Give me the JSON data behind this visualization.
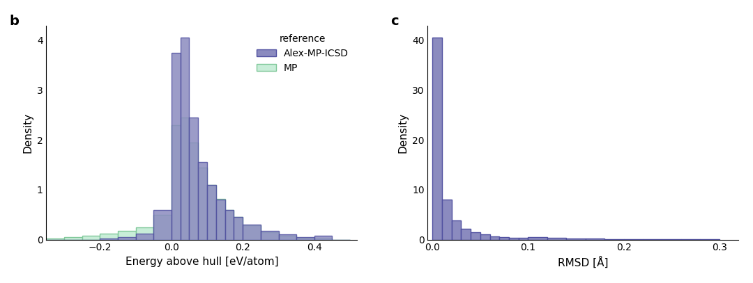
{
  "fig_width": 10.8,
  "fig_height": 4.07,
  "bg_color": "#ffffff",
  "panel_b": {
    "label": "b",
    "xlabel": "Energy above hull [eV/atom]",
    "ylabel": "Density",
    "xlim": [
      -0.35,
      0.52
    ],
    "ylim": [
      0,
      4.3
    ],
    "yticks": [
      0,
      1,
      2,
      3,
      4
    ],
    "xticks": [
      -0.2,
      0.0,
      0.2,
      0.4
    ],
    "legend_title": "reference",
    "legend_labels": [
      "Alex-MP-ICSD",
      "MP"
    ],
    "alex_color_fill": "#8b8bbf",
    "alex_color_edge": "#5050a0",
    "mp_color_fill": "#c8edd8",
    "mp_color_edge": "#80c89a",
    "alex_bins": [
      -0.35,
      -0.3,
      -0.25,
      -0.2,
      -0.15,
      -0.1,
      -0.05,
      0.0,
      0.025,
      0.05,
      0.075,
      0.1,
      0.125,
      0.15,
      0.175,
      0.2,
      0.25,
      0.3,
      0.35,
      0.4,
      0.45,
      0.5
    ],
    "alex_heights": [
      0.0,
      0.0,
      0.0,
      0.02,
      0.05,
      0.12,
      0.6,
      3.75,
      4.05,
      2.45,
      1.55,
      1.1,
      0.8,
      0.6,
      0.45,
      0.3,
      0.18,
      0.1,
      0.05,
      0.08,
      0.0
    ],
    "mp_bins": [
      -0.35,
      -0.3,
      -0.25,
      -0.2,
      -0.15,
      -0.1,
      -0.05,
      0.0,
      0.025,
      0.05,
      0.075,
      0.1,
      0.125,
      0.15,
      0.175,
      0.2,
      0.25,
      0.3,
      0.35,
      0.4,
      0.45,
      0.5
    ],
    "mp_heights": [
      0.02,
      0.05,
      0.08,
      0.12,
      0.18,
      0.25,
      0.5,
      2.3,
      2.45,
      1.95,
      1.45,
      1.1,
      0.82,
      0.6,
      0.45,
      0.28,
      0.15,
      0.08,
      0.04,
      0.02,
      0.0
    ]
  },
  "panel_c": {
    "label": "c",
    "xlabel": "RMSD [Å]",
    "ylabel": "Density",
    "xlim": [
      -0.005,
      0.32
    ],
    "ylim": [
      0,
      43
    ],
    "yticks": [
      0,
      10,
      20,
      30,
      40
    ],
    "xticks": [
      0.0,
      0.1,
      0.2,
      0.3
    ],
    "alex_color_fill": "#8b8bbf",
    "alex_color_edge": "#5050a0",
    "rmsd_bins": [
      0.0,
      0.01,
      0.02,
      0.03,
      0.04,
      0.05,
      0.06,
      0.07,
      0.08,
      0.09,
      0.1,
      0.12,
      0.14,
      0.16,
      0.18,
      0.2,
      0.22,
      0.24,
      0.26,
      0.28,
      0.3
    ],
    "rmsd_heights": [
      40.5,
      8.0,
      3.8,
      2.2,
      1.5,
      1.0,
      0.7,
      0.5,
      0.4,
      0.3,
      0.5,
      0.3,
      0.2,
      0.15,
      0.1,
      0.08,
      0.06,
      0.05,
      0.04,
      0.03
    ]
  }
}
